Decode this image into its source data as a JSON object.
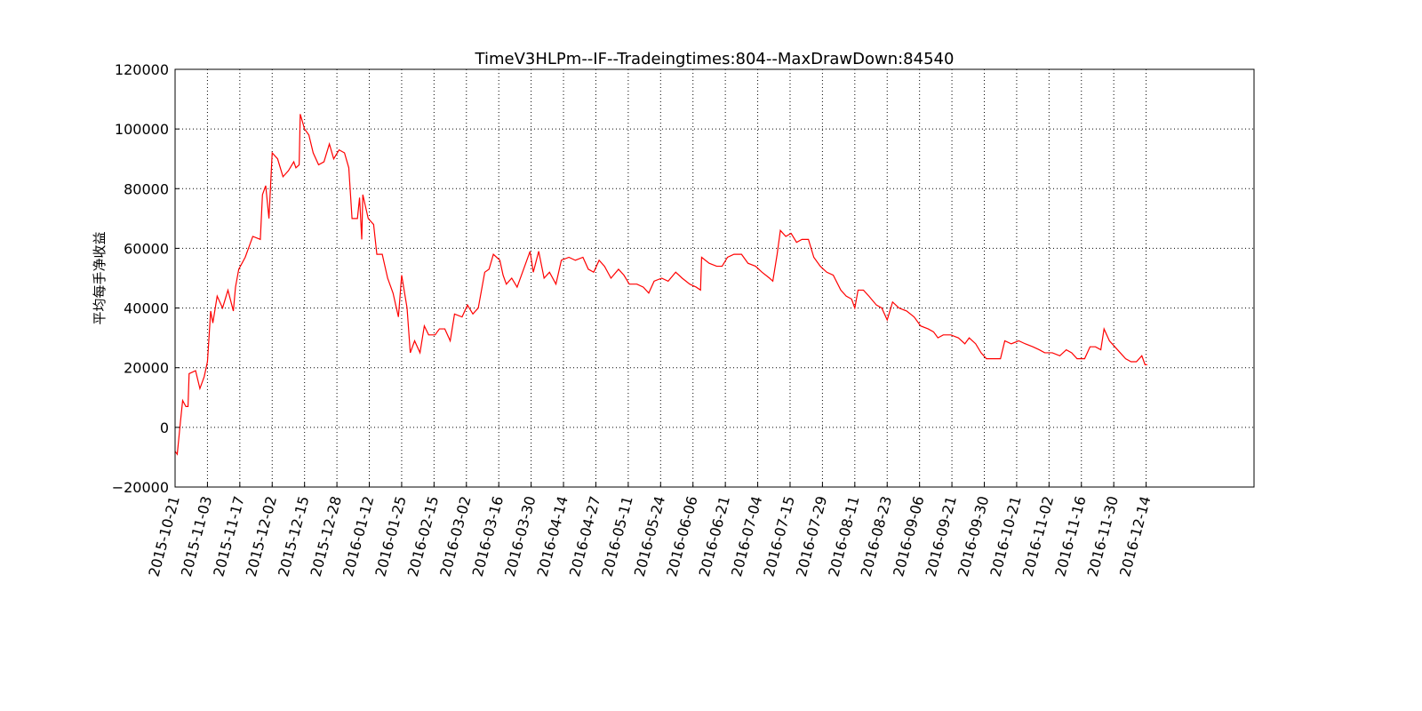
{
  "chart_data": {
    "type": "line",
    "title": "TimeV3HLPm--IF--Tradeingtimes:804--MaxDrawDown:84540",
    "ylabel": "平均每手净收益",
    "xlim": [
      0,
      1000
    ],
    "ylim": [
      -20000,
      120000
    ],
    "yticks": [
      {
        "value": -20000,
        "label": "−20000"
      },
      0,
      20000,
      40000,
      60000,
      80000,
      100000,
      120000
    ],
    "xticks": [
      {
        "value": 0,
        "label": "2015-10-21"
      },
      {
        "value": 30,
        "label": "2015-11-03"
      },
      {
        "value": 60,
        "label": "2015-11-17"
      },
      {
        "value": 90,
        "label": "2015-12-02"
      },
      {
        "value": 120,
        "label": "2015-12-15"
      },
      {
        "value": 150,
        "label": "2015-12-28"
      },
      {
        "value": 180,
        "label": "2016-01-12"
      },
      {
        "value": 210,
        "label": "2016-01-25"
      },
      {
        "value": 240,
        "label": "2016-02-15"
      },
      {
        "value": 270,
        "label": "2016-03-02"
      },
      {
        "value": 300,
        "label": "2016-03-16"
      },
      {
        "value": 330,
        "label": "2016-03-30"
      },
      {
        "value": 360,
        "label": "2016-04-14"
      },
      {
        "value": 390,
        "label": "2016-04-27"
      },
      {
        "value": 420,
        "label": "2016-05-11"
      },
      {
        "value": 450,
        "label": "2016-05-24"
      },
      {
        "value": 480,
        "label": "2016-06-06"
      },
      {
        "value": 510,
        "label": "2016-06-21"
      },
      {
        "value": 540,
        "label": "2016-07-04"
      },
      {
        "value": 570,
        "label": "2016-07-15"
      },
      {
        "value": 600,
        "label": "2016-07-29"
      },
      {
        "value": 630,
        "label": "2016-08-11"
      },
      {
        "value": 660,
        "label": "2016-08-23"
      },
      {
        "value": 690,
        "label": "2016-09-06"
      },
      {
        "value": 720,
        "label": "2016-09-21"
      },
      {
        "value": 750,
        "label": "2016-09-30"
      },
      {
        "value": 780,
        "label": "2016-10-21"
      },
      {
        "value": 810,
        "label": "2016-11-02"
      },
      {
        "value": 840,
        "label": "2016-11-16"
      },
      {
        "value": 870,
        "label": "2016-11-30"
      },
      {
        "value": 900,
        "label": "2016-12-14"
      }
    ],
    "grid": true,
    "color": "#ff0000",
    "x": [
      0,
      2,
      5,
      7,
      10,
      12,
      13,
      19,
      23,
      27,
      30,
      33,
      35,
      39,
      44,
      49,
      54,
      56,
      59,
      65,
      68,
      72,
      79,
      81,
      84,
      87,
      90,
      95,
      100,
      105,
      110,
      112,
      115,
      116,
      120,
      124,
      128,
      133,
      138,
      143,
      147,
      152,
      157,
      161,
      164,
      169,
      171,
      173,
      174,
      179,
      184,
      187,
      192,
      197,
      202,
      207,
      210,
      215,
      218,
      222,
      227,
      231,
      235,
      241,
      245,
      250,
      255,
      259,
      266,
      271,
      276,
      281,
      287,
      291,
      295,
      301,
      304,
      307,
      312,
      317,
      322,
      329,
      332,
      337,
      342,
      347,
      353,
      358,
      365,
      371,
      378,
      383,
      388,
      393,
      398,
      404,
      411,
      416,
      421,
      428,
      434,
      439,
      444,
      451,
      457,
      464,
      470,
      477,
      483,
      487,
      488,
      495,
      502,
      507,
      512,
      518,
      525,
      531,
      538,
      544,
      551,
      554,
      558,
      561,
      566,
      571,
      576,
      581,
      587,
      592,
      598,
      604,
      610,
      617,
      622,
      627,
      630,
      633,
      638,
      643,
      650,
      655,
      660,
      665,
      671,
      678,
      685,
      691,
      698,
      703,
      707,
      712,
      719,
      726,
      732,
      736,
      742,
      747,
      752,
      759,
      765,
      769,
      775,
      782,
      788,
      795,
      801,
      806,
      813,
      820,
      826,
      831,
      836,
      843,
      848,
      853,
      858,
      861,
      866,
      871,
      876,
      881,
      886,
      891,
      896,
      899,
      901
    ],
    "values": [
      -8000,
      -9000,
      2000,
      9000,
      7000,
      7000,
      18000,
      19000,
      13000,
      17000,
      22000,
      39000,
      35000,
      44000,
      40000,
      46000,
      39000,
      47000,
      53000,
      57000,
      60000,
      64000,
      63000,
      78000,
      81000,
      70000,
      92000,
      90000,
      84000,
      86000,
      89000,
      87000,
      88000,
      105000,
      100000,
      98000,
      92000,
      88000,
      89000,
      95000,
      90000,
      93000,
      92000,
      87000,
      70000,
      70000,
      77000,
      63000,
      78000,
      70000,
      68000,
      58000,
      58000,
      50000,
      45000,
      37000,
      51000,
      40000,
      25000,
      29000,
      25000,
      34000,
      31000,
      31000,
      33000,
      33000,
      29000,
      38000,
      37000,
      41000,
      38000,
      40000,
      52000,
      53000,
      58000,
      56000,
      51000,
      48000,
      50000,
      47000,
      52000,
      59000,
      52000,
      59000,
      50000,
      52000,
      48000,
      56000,
      57000,
      56000,
      57000,
      53000,
      52000,
      56000,
      54000,
      50000,
      53000,
      51000,
      48000,
      48000,
      47000,
      45000,
      49000,
      50000,
      49000,
      52000,
      50000,
      48000,
      47000,
      46000,
      57000,
      55000,
      54000,
      54000,
      57000,
      58000,
      58000,
      55000,
      54000,
      52000,
      50000,
      49000,
      58000,
      66000,
      64000,
      65000,
      62000,
      63000,
      63000,
      57000,
      54000,
      52000,
      51000,
      46000,
      44000,
      43000,
      40000,
      46000,
      46000,
      44000,
      41000,
      40000,
      36000,
      42000,
      40000,
      39000,
      37000,
      34000,
      33000,
      32000,
      30000,
      31000,
      31000,
      30000,
      28000,
      30000,
      28000,
      25000,
      23000,
      23000,
      23000,
      29000,
      28000,
      29000,
      28000,
      27000,
      26000,
      25000,
      25000,
      24000,
      26000,
      25000,
      23000,
      23000,
      27000,
      27000,
      26000,
      33000,
      29000,
      27000,
      25000,
      23000,
      22000,
      22000,
      24000,
      21000,
      21000
    ]
  }
}
